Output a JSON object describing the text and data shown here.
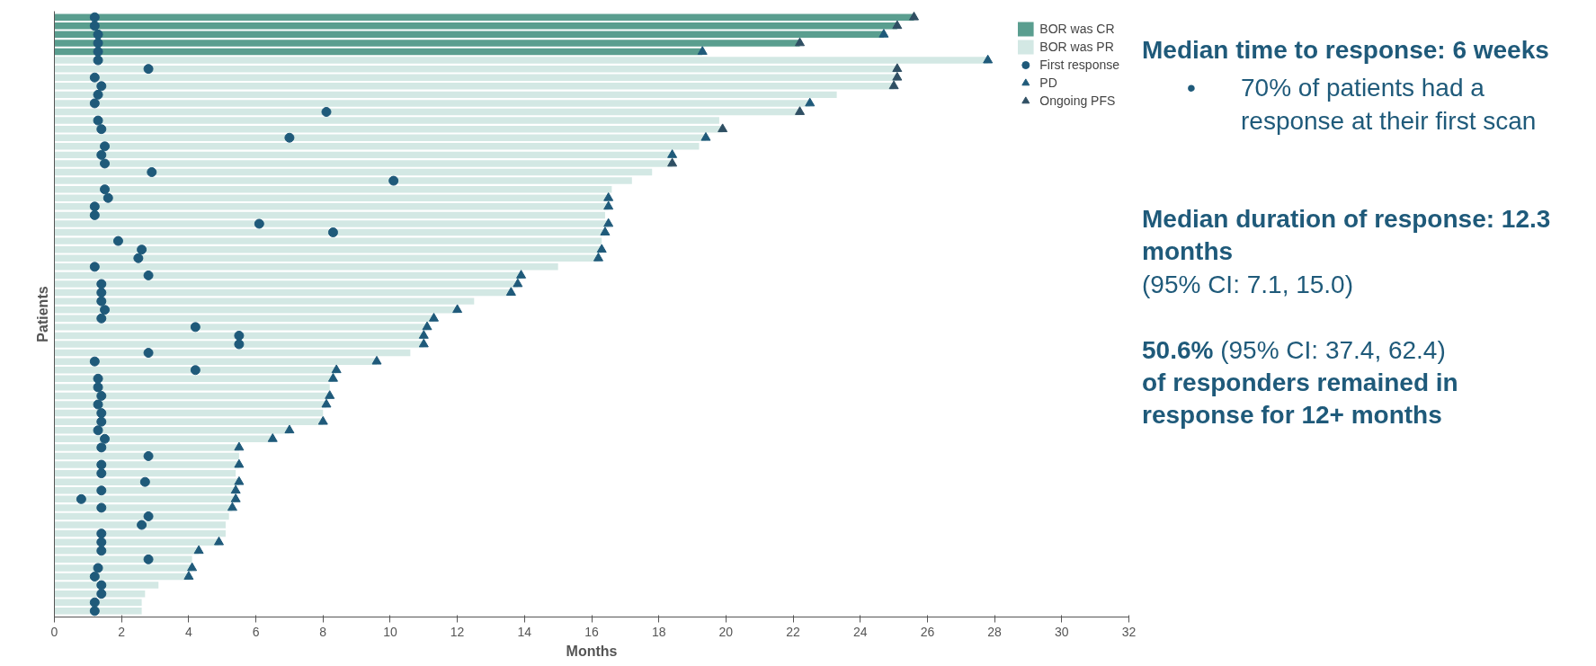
{
  "chart_data": {
    "type": "bar",
    "orientation": "horizontal",
    "xlabel": "Months",
    "ylabel": "Patients",
    "categories": [
      null,
      null,
      null,
      null,
      null,
      null,
      null,
      null,
      null,
      null,
      null,
      null,
      null,
      null,
      null,
      null,
      null,
      null,
      null,
      null,
      null,
      null,
      null,
      null,
      null,
      null,
      null,
      null,
      null,
      null,
      null,
      null,
      null,
      null,
      null,
      null,
      null,
      null,
      null,
      null,
      null,
      null,
      null,
      null,
      null,
      null,
      null,
      null,
      null,
      null,
      null,
      null,
      null,
      null,
      null,
      null,
      null,
      null,
      null,
      null,
      null,
      null,
      null,
      null,
      null,
      null,
      null,
      null,
      null,
      null
    ],
    "xlim": [
      0,
      32
    ],
    "xticks": [
      0,
      2,
      4,
      6,
      8,
      10,
      12,
      14,
      16,
      18,
      20,
      22,
      24,
      26,
      28,
      30,
      32
    ],
    "tick_labels": "x",
    "grid": false,
    "legend": "top right",
    "series": [
      {
        "name": "BOR was CR",
        "color": "#5a9e8f",
        "values": [
          25.6,
          25.1,
          24.7,
          22.2,
          19.3,
          null,
          null,
          null,
          null,
          null,
          null,
          null,
          null,
          null,
          null,
          null,
          null,
          null,
          null,
          null,
          null,
          null,
          null,
          null,
          null,
          null,
          null,
          null,
          null,
          null,
          null,
          null,
          null,
          null,
          null,
          null,
          null,
          null,
          null,
          null,
          null,
          null,
          null,
          null,
          null,
          null,
          null,
          null,
          null,
          null,
          null,
          null,
          null,
          null,
          null,
          null,
          null,
          null,
          null,
          null,
          null,
          null,
          null,
          null,
          null,
          null,
          null,
          null,
          null,
          null
        ]
      },
      {
        "name": "BOR was PR",
        "color": "#d3e8e4",
        "values": [
          null,
          null,
          null,
          null,
          null,
          27.8,
          25.1,
          25.1,
          25.0,
          23.3,
          22.5,
          22.2,
          19.8,
          19.9,
          19.4,
          19.2,
          18.4,
          18.4,
          17.8,
          17.2,
          16.6,
          16.5,
          16.5,
          16.4,
          16.5,
          16.4,
          16.3,
          16.3,
          16.2,
          15.0,
          13.9,
          13.8,
          13.6,
          12.5,
          12.0,
          11.3,
          11.1,
          11.0,
          11.0,
          10.6,
          9.6,
          8.4,
          8.3,
          8.2,
          8.2,
          8.1,
          8.0,
          8.0,
          7.0,
          6.5,
          5.5,
          5.5,
          5.5,
          5.4,
          5.5,
          5.4,
          5.4,
          5.3,
          5.2,
          5.1,
          5.1,
          4.9,
          4.3,
          4.1,
          4.1,
          4.0,
          3.1,
          2.7,
          2.6,
          2.6
        ]
      },
      {
        "name": "First response",
        "type": "scatter",
        "marker": "circle",
        "color": "#1f5a7a",
        "values": [
          1.2,
          1.2,
          1.3,
          1.3,
          1.3,
          1.3,
          2.8,
          1.2,
          1.4,
          1.3,
          1.2,
          8.1,
          1.3,
          1.4,
          7.0,
          1.5,
          1.4,
          1.5,
          2.9,
          10.1,
          1.5,
          1.6,
          1.2,
          1.2,
          6.1,
          8.3,
          1.9,
          2.6,
          2.5,
          1.2,
          2.8,
          1.4,
          1.4,
          1.4,
          1.5,
          1.4,
          4.2,
          5.5,
          5.5,
          2.8,
          1.2,
          4.2,
          1.3,
          1.3,
          1.4,
          1.3,
          1.4,
          1.4,
          1.3,
          1.5,
          1.4,
          2.8,
          1.4,
          1.4,
          2.7,
          1.4,
          0.8,
          1.4,
          2.8,
          2.6,
          1.4,
          1.4,
          1.4,
          2.8,
          1.3,
          1.2,
          1.4,
          1.4,
          1.2,
          1.2
        ]
      },
      {
        "name": "PD",
        "type": "scatter",
        "marker": "triangle",
        "color": "#1f5a7a",
        "values": [
          null,
          null,
          24.7,
          null,
          19.3,
          27.8,
          null,
          null,
          null,
          null,
          22.5,
          null,
          null,
          null,
          19.4,
          null,
          18.4,
          null,
          null,
          null,
          null,
          16.5,
          16.5,
          null,
          16.5,
          16.4,
          null,
          16.3,
          16.2,
          null,
          13.9,
          13.8,
          13.6,
          null,
          12.0,
          11.3,
          11.1,
          11.0,
          11.0,
          null,
          9.6,
          8.4,
          8.3,
          null,
          8.2,
          8.1,
          null,
          8.0,
          7.0,
          6.5,
          5.5,
          null,
          5.5,
          null,
          5.5,
          5.4,
          5.4,
          5.3,
          null,
          null,
          null,
          4.9,
          4.3,
          null,
          4.1,
          4.0,
          null,
          null,
          null,
          null
        ]
      },
      {
        "name": "Ongoing PFS",
        "type": "scatter",
        "marker": "triangle",
        "color": "#2f4f63",
        "values": [
          25.6,
          25.1,
          null,
          22.2,
          null,
          null,
          25.1,
          25.1,
          25.0,
          null,
          null,
          22.2,
          null,
          19.9,
          null,
          null,
          null,
          18.4,
          null,
          null,
          null,
          null,
          null,
          null,
          null,
          null,
          null,
          null,
          null,
          null,
          null,
          null,
          null,
          null,
          null,
          null,
          null,
          null,
          null,
          null,
          null,
          null,
          null,
          null,
          null,
          null,
          null,
          null,
          null,
          null,
          null,
          null,
          null,
          null,
          null,
          null,
          null,
          null,
          null,
          null,
          null,
          null,
          null,
          null,
          null,
          null,
          null,
          null,
          null,
          null
        ]
      }
    ],
    "annotations": [
      "Median time to response: 6 weeks",
      "•",
      "70% of patients had a response at their first scan",
      "Median duration of response: 12.3 months",
      "(95% CI: 7.1, 15.0)",
      "50.6%",
      "(95% CI: 37.4, 62.4)",
      "of responders remained in response for 12+ months"
    ]
  }
}
